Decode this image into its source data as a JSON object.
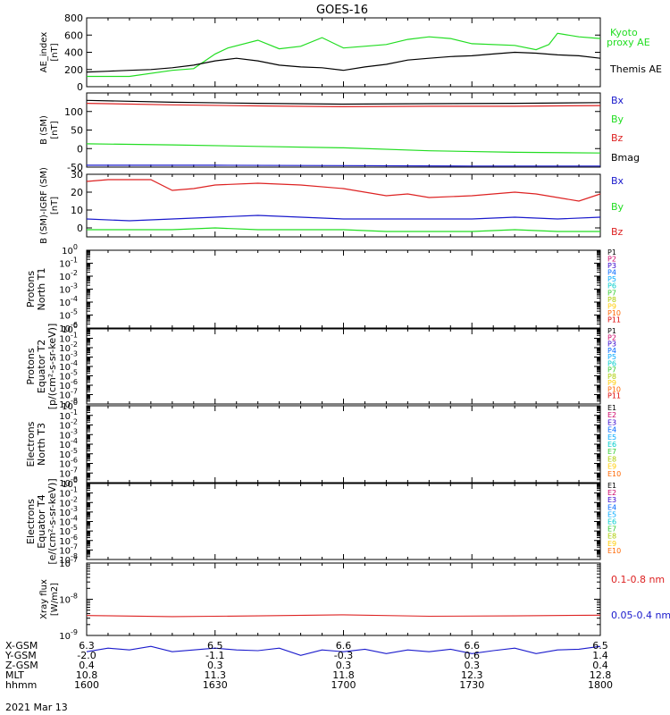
{
  "title": "GOES-16",
  "date_label": "2021 Mar 13",
  "colors": {
    "green": "#22dd22",
    "black": "#000000",
    "blue": "#1a1acc",
    "red": "#dd2222"
  },
  "channel_colors": [
    "#000000",
    "#cc0066",
    "#3300cc",
    "#0066ff",
    "#00aaff",
    "#00cccc",
    "#33cc33",
    "#aacc00",
    "#ffcc00",
    "#ff6600",
    "#dd0000",
    "#aa0000"
  ],
  "ephemeris": {
    "row_labels": [
      "X-GSM",
      "Y-GSM",
      "Z-GSM",
      "MLT",
      "hhmm"
    ],
    "columns": [
      [
        "6.3",
        "-2.0",
        "0.4",
        "10.8",
        "1600"
      ],
      [
        "6.5",
        "-1.1",
        "0.3",
        "11.3",
        "1630"
      ],
      [
        "6.6",
        "-0.3",
        "0.3",
        "11.8",
        "1700"
      ],
      [
        "6.6",
        "0.6",
        "0.3",
        "12.3",
        "1730"
      ],
      [
        "6.5",
        "1.4",
        "0.4",
        "12.8",
        "1800"
      ]
    ]
  },
  "chart_data": [
    {
      "type": "line",
      "ylabel": "AE_index [nT]",
      "ylim": [
        0,
        800
      ],
      "yticks": [
        "0",
        "200",
        "400",
        "600",
        "800"
      ],
      "x_hhmm": [
        1600,
        1800
      ],
      "series": [
        {
          "name": "Kyoto proxy AE",
          "color": "#22dd22",
          "x": [
            1600,
            1605,
            1610,
            1620,
            1625,
            1630,
            1633,
            1640,
            1645,
            1650,
            1655,
            1700,
            1710,
            1715,
            1720,
            1725,
            1730,
            1740,
            1745,
            1748,
            1750,
            1755,
            1800
          ],
          "y": [
            120,
            120,
            120,
            190,
            210,
            380,
            450,
            540,
            440,
            470,
            570,
            450,
            490,
            550,
            580,
            560,
            500,
            480,
            430,
            490,
            620,
            580,
            560
          ]
        },
        {
          "name": "Themis AE",
          "color": "#000000",
          "x": [
            1600,
            1605,
            1610,
            1615,
            1620,
            1625,
            1630,
            1635,
            1640,
            1645,
            1650,
            1655,
            1700,
            1705,
            1710,
            1715,
            1720,
            1725,
            1730,
            1735,
            1740,
            1745,
            1750,
            1755,
            1800
          ],
          "y": [
            170,
            180,
            190,
            200,
            220,
            250,
            300,
            330,
            300,
            250,
            230,
            220,
            190,
            230,
            260,
            310,
            330,
            350,
            360,
            380,
            400,
            390,
            370,
            360,
            330
          ]
        }
      ]
    },
    {
      "type": "line",
      "ylabel": "B (SM) [nT]",
      "ylim": [
        -50,
        150
      ],
      "yticks": [
        "-50",
        "0",
        "50",
        "100"
      ],
      "x_hhmm": [
        1600,
        1800
      ],
      "series": [
        {
          "name": "Bx",
          "color": "#1a1acc",
          "x": [
            1600,
            1630,
            1700,
            1730,
            1800
          ],
          "y": [
            -45,
            -45,
            -46,
            -47,
            -47
          ]
        },
        {
          "name": "By",
          "color": "#22dd22",
          "x": [
            1600,
            1620,
            1640,
            1700,
            1720,
            1740,
            1800
          ],
          "y": [
            13,
            10,
            6,
            2,
            -6,
            -10,
            -12
          ]
        },
        {
          "name": "Bz",
          "color": "#dd2222",
          "x": [
            1600,
            1620,
            1640,
            1700,
            1720,
            1740,
            1800
          ],
          "y": [
            122,
            118,
            115,
            113,
            114,
            114,
            116
          ]
        },
        {
          "name": "Bmag",
          "color": "#000000",
          "x": [
            1600,
            1620,
            1640,
            1700,
            1720,
            1740,
            1800
          ],
          "y": [
            130,
            125,
            122,
            120,
            121,
            122,
            124
          ]
        }
      ]
    },
    {
      "type": "line",
      "ylabel": "B (SM)-IGRF (SM) [nT]",
      "ylim": [
        -5,
        30
      ],
      "yticks": [
        "0",
        "10",
        "20",
        "30"
      ],
      "x_hhmm": [
        1600,
        1800
      ],
      "series": [
        {
          "name": "Bx",
          "color": "#1a1acc",
          "x": [
            1600,
            1610,
            1620,
            1630,
            1640,
            1650,
            1700,
            1710,
            1720,
            1730,
            1740,
            1750,
            1800
          ],
          "y": [
            5,
            4,
            5,
            6,
            7,
            6,
            5,
            5,
            5,
            5,
            6,
            5,
            6
          ]
        },
        {
          "name": "By",
          "color": "#22dd22",
          "x": [
            1600,
            1610,
            1620,
            1630,
            1640,
            1650,
            1700,
            1710,
            1720,
            1730,
            1740,
            1750,
            1800
          ],
          "y": [
            -1,
            -1,
            -1,
            0,
            -1,
            -1,
            -1,
            -2,
            -2,
            -2,
            -1,
            -2,
            -2
          ]
        },
        {
          "name": "Bz",
          "color": "#dd2222",
          "x": [
            1600,
            1605,
            1610,
            1615,
            1620,
            1625,
            1630,
            1640,
            1650,
            1700,
            1710,
            1715,
            1720,
            1730,
            1740,
            1745,
            1750,
            1755,
            1800
          ],
          "y": [
            26,
            27,
            27,
            27,
            21,
            22,
            24,
            25,
            24,
            22,
            18,
            19,
            17,
            18,
            20,
            19,
            17,
            15,
            19
          ]
        }
      ]
    },
    {
      "type": "line",
      "ylabel": "Protons North T1",
      "ytick_exponents": [
        0,
        -1,
        -2,
        -3,
        -4,
        -5,
        -6
      ],
      "legend": [
        "P1",
        "P2",
        "P3",
        "P4",
        "P5",
        "P6",
        "P7",
        "P8",
        "P9",
        "P10",
        "P11"
      ],
      "series": []
    },
    {
      "type": "line",
      "ylabel": "Protons Equator T2 [p/(cm²-s-sr-keV)]",
      "ytick_exponents": [
        0,
        -1,
        -2,
        -3,
        -4,
        -5,
        -6,
        -7,
        -8
      ],
      "legend": [
        "P1",
        "P2",
        "P3",
        "P4",
        "P5",
        "P6",
        "P7",
        "P8",
        "P9",
        "P10",
        "P11"
      ],
      "series": []
    },
    {
      "type": "line",
      "ylabel": "Electrons North T3",
      "ytick_exponents": [
        0,
        -1,
        -2,
        -3,
        -4,
        -5,
        -6,
        -7,
        -8
      ],
      "legend": [
        "E1",
        "E2",
        "E3",
        "E4",
        "E5",
        "E6",
        "E7",
        "E8",
        "E9",
        "E10"
      ],
      "series": []
    },
    {
      "type": "line",
      "ylabel": "Electrons Equator T4 [e/(cm²-s-sr-keV)]",
      "ytick_exponents": [
        0,
        -1,
        -2,
        -3,
        -4,
        -5,
        -6,
        -7,
        -8
      ],
      "legend": [
        "E1",
        "E2",
        "E3",
        "E4",
        "E5",
        "E6",
        "E7",
        "E8",
        "E9",
        "E10"
      ],
      "series": []
    },
    {
      "type": "line",
      "ylabel": "Xray flux [W/m2]",
      "ytick_exponents": [
        -7,
        -8,
        -9
      ],
      "yscale": "log",
      "x_hhmm": [
        1600,
        1800
      ],
      "series": [
        {
          "name": "0.1-0.8 nm",
          "color": "#dd2222",
          "x": [
            1600,
            1620,
            1640,
            1700,
            1720,
            1740,
            1800
          ],
          "y_log10": [
            -8.45,
            -8.48,
            -8.46,
            -8.43,
            -8.47,
            -8.46,
            -8.44
          ]
        },
        {
          "name": "0.05-0.4 nm",
          "color": "#1a1acc",
          "x": [
            1600,
            1605,
            1610,
            1615,
            1620,
            1625,
            1630,
            1635,
            1640,
            1645,
            1650,
            1655,
            1700,
            1705,
            1710,
            1715,
            1720,
            1725,
            1730,
            1735,
            1740,
            1745,
            1750,
            1755,
            1800
          ],
          "y_log10": [
            -9.45,
            -9.35,
            -9.4,
            -9.3,
            -9.45,
            -9.4,
            -9.35,
            -9.4,
            -9.42,
            -9.35,
            -9.55,
            -9.4,
            -9.45,
            -9.38,
            -9.5,
            -9.4,
            -9.45,
            -9.38,
            -9.5,
            -9.42,
            -9.35,
            -9.5,
            -9.4,
            -9.38,
            -9.3
          ]
        }
      ]
    }
  ]
}
